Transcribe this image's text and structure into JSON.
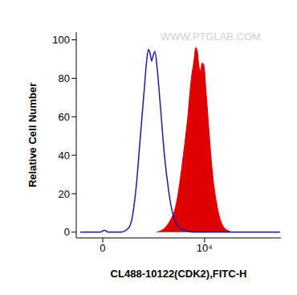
{
  "chart_data": {
    "type": "line",
    "xlabel": "CL488-10122(CDK2),FITC-H",
    "ylabel": "Relative Cell Number",
    "watermark": "WWW.PTGLAB.COM",
    "xlim": [
      -2600,
      17500
    ],
    "xticks": [
      0,
      {
        "value": 10000,
        "label": "10⁴"
      }
    ],
    "ylim": [
      -3,
      104
    ],
    "yticks": [
      0,
      20,
      40,
      60,
      80,
      100
    ],
    "grid": false,
    "series": [
      {
        "type": "line",
        "color": "#1a1aa0",
        "x": [
          -2200,
          -240,
          160,
          550,
          1730,
          2520,
          2910,
          3310,
          3700,
          4090,
          4330,
          4490,
          4650,
          4800,
          4960,
          5120,
          5350,
          5670,
          6060,
          6460,
          6850,
          7240,
          7640,
          8030,
          8820,
          17400
        ],
        "values": [
          0,
          0,
          1,
          0,
          0,
          2,
          8,
          25,
          50,
          75,
          90,
          95,
          93,
          89,
          92,
          94,
          85,
          65,
          40,
          22,
          10,
          4,
          2,
          1,
          0,
          0
        ]
      },
      {
        "type": "area",
        "color": "#e00000",
        "x": [
          5280,
          6060,
          6610,
          7090,
          7400,
          7720,
          8030,
          8350,
          8660,
          8980,
          9130,
          9290,
          9450,
          9610,
          9760,
          9920,
          10160,
          10470,
          10790,
          11180,
          11580,
          11970,
          12760
        ],
        "values": [
          0,
          2,
          6,
          12,
          20,
          32,
          45,
          60,
          78,
          90,
          96,
          94,
          86,
          84,
          88,
          87,
          72,
          50,
          30,
          15,
          6,
          2,
          0
        ]
      }
    ]
  }
}
